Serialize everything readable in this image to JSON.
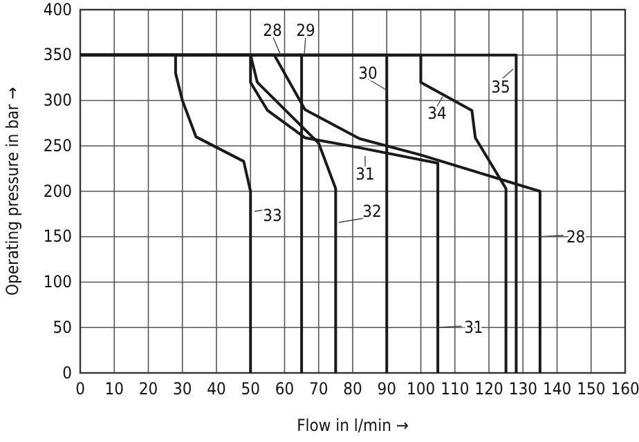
{
  "chart_data": {
    "type": "line",
    "xlabel": "Flow in l/min →",
    "ylabel": "Operating pressure in bar →",
    "xlim": [
      0,
      160
    ],
    "ylim": [
      0,
      400
    ],
    "xticks": [
      0,
      10,
      20,
      30,
      40,
      50,
      60,
      70,
      80,
      90,
      100,
      110,
      120,
      130,
      140,
      150,
      160
    ],
    "yticks": [
      0,
      50,
      100,
      150,
      200,
      250,
      300,
      350,
      400
    ],
    "grid": true,
    "marker": "none",
    "line_style": "solid",
    "series": [
      {
        "name": "28",
        "color": "#1a1a1a",
        "x": [
          0,
          57,
          66,
          82,
          100,
          135,
          135
        ],
        "values": [
          350,
          350,
          290,
          258,
          240,
          200,
          0
        ]
      },
      {
        "name": "29",
        "color": "#1a1a1a",
        "x": [
          0,
          65,
          65
        ],
        "values": [
          350,
          350,
          0
        ]
      },
      {
        "name": "30",
        "color": "#1a1a1a",
        "x": [
          0,
          90,
          90
        ],
        "values": [
          350,
          350,
          0
        ]
      },
      {
        "name": "31",
        "color": "#1a1a1a",
        "x": [
          0,
          50,
          50,
          55,
          66,
          82,
          105,
          105
        ],
        "values": [
          350,
          350,
          320,
          289,
          259,
          248,
          231,
          0
        ]
      },
      {
        "name": "32",
        "color": "#1a1a1a",
        "x": [
          0,
          50,
          52,
          70,
          75,
          75
        ],
        "values": [
          350,
          350,
          320,
          253,
          203,
          0
        ]
      },
      {
        "name": "33",
        "color": "#1a1a1a",
        "x": [
          0,
          28,
          28,
          30,
          34,
          48,
          50,
          50
        ],
        "values": [
          350,
          350,
          330,
          300,
          260,
          233,
          200,
          0
        ]
      },
      {
        "name": "34",
        "color": "#1a1a1a",
        "x": [
          0,
          100,
          100,
          115,
          116,
          125,
          125
        ],
        "values": [
          350,
          350,
          320,
          289,
          259,
          203,
          0
        ]
      },
      {
        "name": "35",
        "color": "#1a1a1a",
        "x": [
          0,
          128,
          128
        ],
        "values": [
          350,
          350,
          0
        ]
      }
    ],
    "annotations": [
      {
        "text": "28",
        "x": 135,
        "y": 150
      },
      {
        "text": "31",
        "x": 105,
        "y": 50
      }
    ]
  }
}
